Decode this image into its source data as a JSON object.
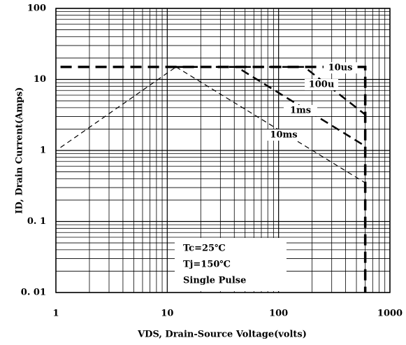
{
  "chart_data": {
    "type": "line",
    "x_label": "VDS, Drain-Source Voltage(volts)",
    "y_label": "ID, Drain Current(Amps)",
    "log_x": true,
    "log_y": true,
    "grid": true,
    "minor_grid": true,
    "xlim": [
      1,
      1000
    ],
    "xticks": [
      1,
      10,
      100,
      1000
    ],
    "ylim": [
      0.01,
      100
    ],
    "yticks": [
      {
        "value": 0.01,
        "label": "0. 01"
      },
      {
        "value": 0.1,
        "label": "0. 1"
      },
      1,
      10,
      100
    ],
    "series": [
      {
        "color": "#000",
        "line_width": 1.2,
        "dash": "7 5",
        "x": [
          1.1,
          12
        ],
        "y": [
          1.1,
          15
        ]
      },
      {
        "name": "10us",
        "color": "#000",
        "line_width": 3.5,
        "dash": "16 9",
        "x": [
          1.1,
          600,
          600
        ],
        "y": [
          15,
          15,
          0.01
        ]
      },
      {
        "name": "100u",
        "color": "#000",
        "line_width": 2.5,
        "dash": "12 7",
        "x": [
          12,
          170,
          600
        ],
        "y": [
          15,
          15,
          3.2
        ]
      },
      {
        "name": "1ms",
        "color": "#000",
        "line_width": 2.5,
        "dash": "12 7",
        "x": [
          12,
          42,
          600
        ],
        "y": [
          15,
          15,
          1.15
        ]
      },
      {
        "name": "10ms",
        "color": "#000",
        "line_width": 1.2,
        "dash": "7 5",
        "x": [
          12,
          600
        ],
        "y": [
          15,
          0.35
        ]
      }
    ],
    "annotations": [
      "Tc=25℃",
      "Tj=150℃",
      "Single Pulse"
    ]
  }
}
